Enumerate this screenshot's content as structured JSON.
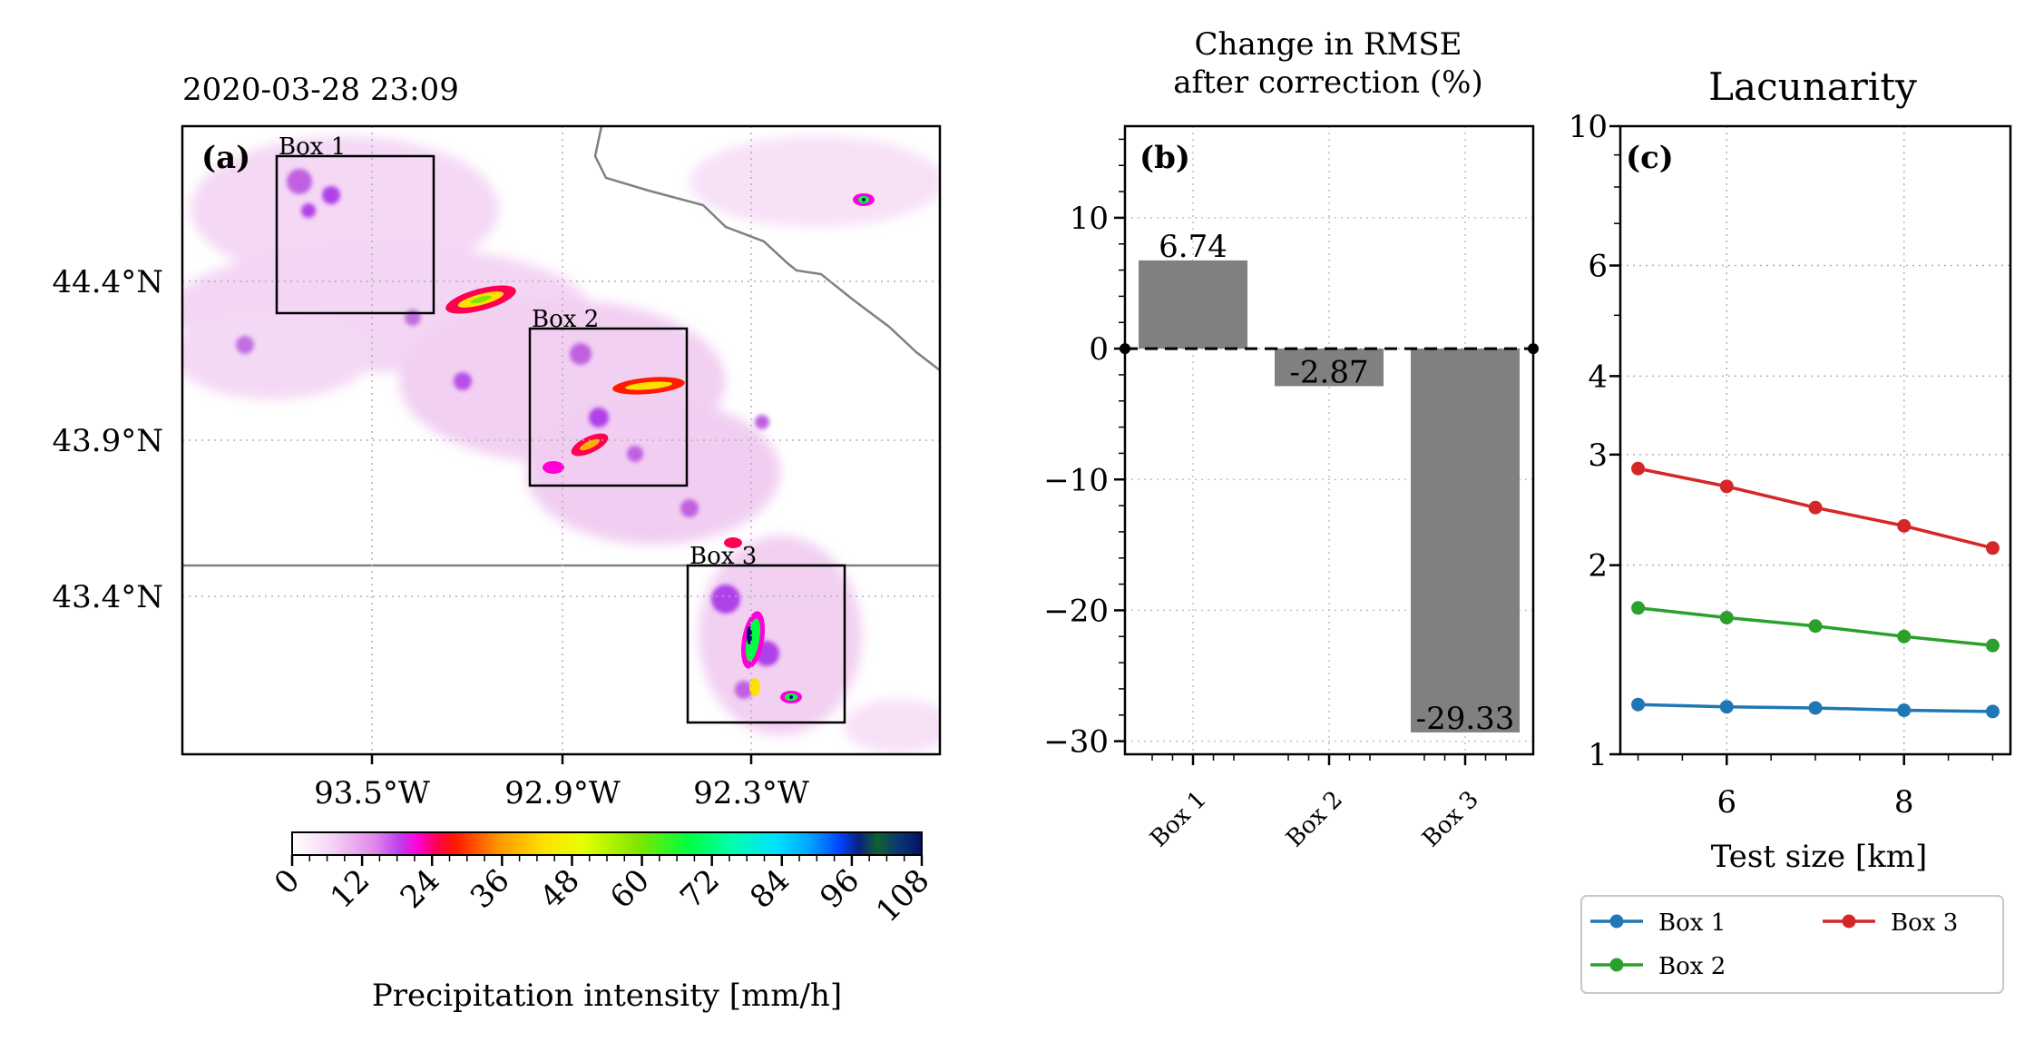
{
  "chart_data": [
    {
      "panel": "(a)",
      "type": "heatmap",
      "title": "2020-03-28 23:09",
      "x_ticks": [
        "93.5°W",
        "92.9°W",
        "92.3°W"
      ],
      "y_ticks": [
        "44.4°N",
        "43.9°N",
        "43.4°N"
      ],
      "box_labels": [
        "Box 1",
        "Box 2",
        "Box 3"
      ],
      "colorbar": {
        "label": "Precipitation intensity [mm/h]",
        "ticks": [
          "0",
          "12",
          "24",
          "36",
          "48",
          "60",
          "72",
          "84",
          "96",
          "108"
        ],
        "range": [
          0,
          108
        ]
      }
    },
    {
      "panel": "(b)",
      "type": "bar",
      "title": "Change in RMSE\nafter correction (%)",
      "categories": [
        "Box 1",
        "Box 2",
        "Box 3"
      ],
      "values": [
        6.74,
        -2.87,
        -29.33
      ],
      "value_labels": [
        "6.74",
        "-2.87",
        "-29.33"
      ],
      "ylim": [
        -31,
        17
      ],
      "yticks": [
        10,
        0,
        -10,
        -20,
        -30
      ],
      "ytick_labels": [
        "10",
        "0",
        "−10",
        "−20",
        "−30"
      ],
      "bar_color": "#808080"
    },
    {
      "panel": "(c)",
      "type": "line",
      "title": "Lacunarity",
      "xlabel": "Test size [km]",
      "x": [
        5,
        6,
        7,
        8,
        9
      ],
      "xlim": [
        4.8,
        9.2
      ],
      "xtick_labels": [
        "6",
        "8"
      ],
      "yscale": "log",
      "ylim": [
        1,
        10
      ],
      "ytick_labels": [
        "10",
        "6",
        "4",
        "3",
        "2",
        "1"
      ],
      "series": [
        {
          "name": "Box 1",
          "color": "#1f77b4",
          "values": [
            1.2,
            1.19,
            1.185,
            1.175,
            1.17
          ]
        },
        {
          "name": "Box 2",
          "color": "#2ca02c",
          "values": [
            1.71,
            1.65,
            1.6,
            1.54,
            1.49
          ]
        },
        {
          "name": "Box 3",
          "color": "#d62728",
          "values": [
            2.85,
            2.67,
            2.47,
            2.31,
            2.13
          ]
        }
      ]
    }
  ]
}
